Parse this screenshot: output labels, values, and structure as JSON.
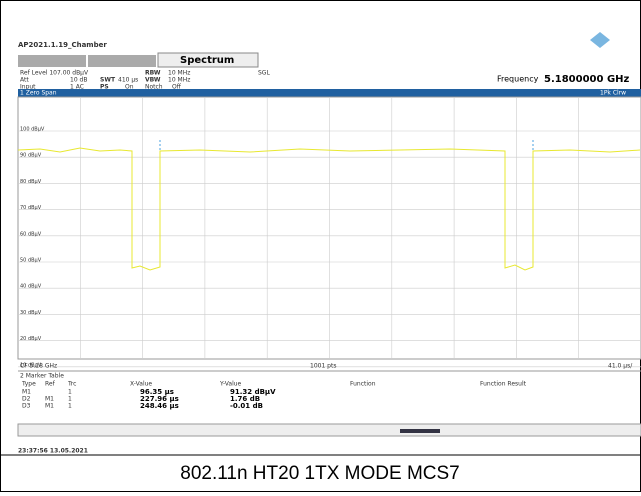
{
  "header": {
    "title": "AP2021.1.19_Chamber",
    "tab": "Spectrum"
  },
  "settings": {
    "ref_level": "Ref Level 107.00 dBµV",
    "att": "Att",
    "att_value": "10 dB",
    "swt": "SWT",
    "swt_value": "410 µs",
    "rbw": "RBW",
    "rbw_value": "10 MHz",
    "vbw": "VBW",
    "vbw_value": "10 MHz",
    "sgl": "SGL",
    "input": "Input",
    "input_value": "1 AC",
    "ps": "PS",
    "ps_value": "On",
    "notch": "Notch",
    "notch_value": "Off",
    "frequency_label": "Frequency",
    "frequency_value": "5.1800000 GHz"
  },
  "plot": {
    "window": "1 Zero Span",
    "trace": "1Pk Clrw",
    "y_labels": [
      "100 dBµV",
      "90 dBµV",
      "80 dBµV",
      "70 dBµV",
      "60 dBµV",
      "50 dBµV",
      "40 dBµV",
      "30 dBµV",
      "20 dBµV",
      "10 dBµV"
    ],
    "cf": "CF 5.18 GHz",
    "points": "1001 pts",
    "span": "41.0 µs/"
  },
  "marker_table": {
    "title": "2 Marker Table",
    "headers": [
      "Type",
      "Ref",
      "Trc",
      "X-Value",
      "Y-Value",
      "Function",
      "Function Result"
    ],
    "rows": [
      [
        "M1",
        "",
        "1",
        "96.35 µs",
        "91.32 dBµV"
      ],
      [
        "D2",
        "M1",
        "1",
        "227.96 µs",
        "1.76 dB"
      ],
      [
        "D3",
        "M1",
        "1",
        "248.46 µs",
        "-0.01 dB"
      ]
    ]
  },
  "timestamp": "23:37:56 13.05.2021",
  "caption": "802.11n HT20 1TX MODE MCS7"
}
